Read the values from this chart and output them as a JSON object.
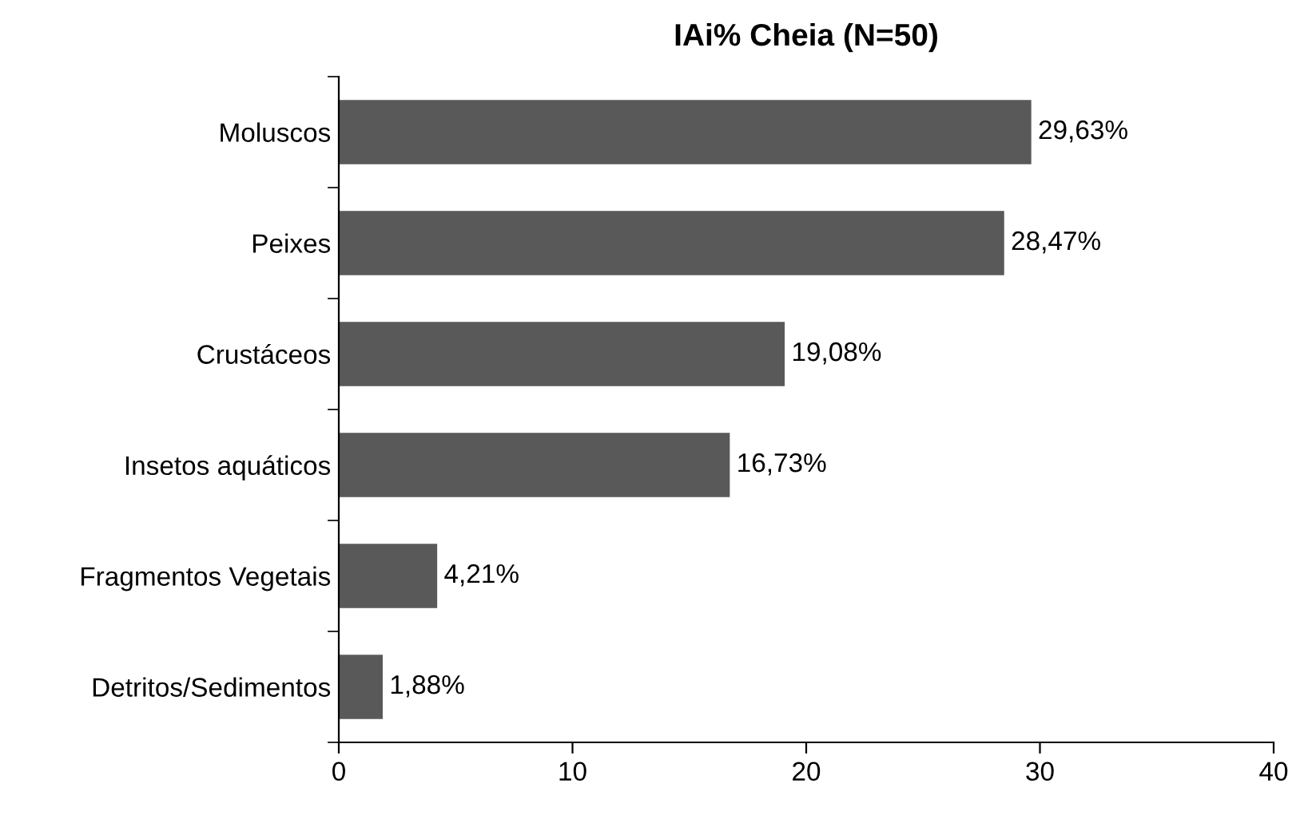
{
  "chart_data": {
    "type": "bar",
    "orientation": "horizontal",
    "title": "IAi% Cheia (N=50)",
    "categories": [
      "Moluscos",
      "Peixes",
      "Crustáceos",
      "Insetos aquáticos",
      "Fragmentos Vegetais",
      "Detritos/Sedimentos"
    ],
    "values": [
      29.63,
      28.47,
      19.08,
      16.73,
      4.21,
      1.88
    ],
    "value_labels": [
      "29,63%",
      "28,47%",
      "19,08%",
      "16,73%",
      "4,21%",
      "1,88%"
    ],
    "color": "#595959",
    "xlim": [
      0,
      40
    ],
    "xticks": [
      0,
      10,
      20,
      30,
      40
    ],
    "grid": false,
    "legend": false
  }
}
